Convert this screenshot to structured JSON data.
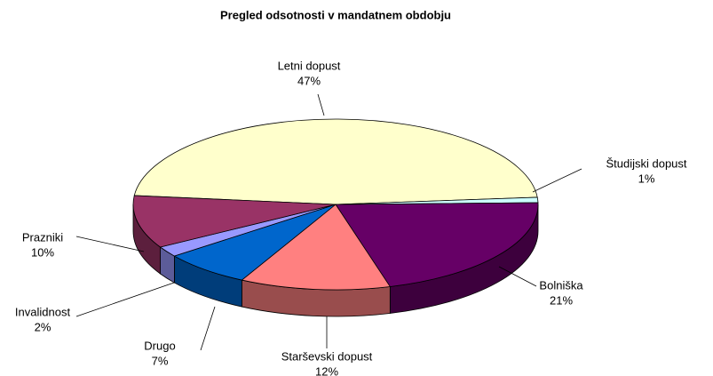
{
  "chart_data": {
    "type": "pie3d",
    "title": "Pregled odsotnosti v mandatnem obdobju",
    "categories": [
      "Letni dopust",
      "Študijski dopust",
      "Bolniška",
      "Starševski dopust",
      "Drugo",
      "Invalidnost",
      "Prazniki"
    ],
    "values": [
      47,
      1,
      21,
      12,
      7,
      2,
      10
    ],
    "value_labels": [
      "47%",
      "1%",
      "21%",
      "12%",
      "7%",
      "2%",
      "10%"
    ],
    "colors": [
      "#FFFFCC",
      "#CCFFFF",
      "#660066",
      "#FF8080",
      "#0066CC",
      "#9999FF",
      "#993366"
    ]
  }
}
